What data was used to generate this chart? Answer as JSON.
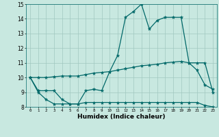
{
  "xlabel": "Humidex (Indice chaleur)",
  "x": [
    0,
    1,
    2,
    3,
    4,
    5,
    6,
    7,
    8,
    9,
    10,
    11,
    12,
    13,
    14,
    15,
    16,
    17,
    18,
    19,
    20,
    21,
    22,
    23
  ],
  "line1": [
    10.0,
    9.1,
    9.1,
    9.1,
    8.5,
    8.2,
    8.2,
    9.1,
    9.2,
    9.1,
    10.4,
    11.5,
    14.1,
    14.5,
    15.0,
    13.3,
    13.9,
    14.1,
    14.1,
    14.1,
    11.0,
    11.0,
    11.0,
    9.0
  ],
  "line2": [
    10.0,
    10.0,
    10.0,
    10.05,
    10.1,
    10.1,
    10.1,
    10.2,
    10.3,
    10.35,
    10.4,
    10.5,
    10.6,
    10.7,
    10.8,
    10.85,
    10.9,
    11.0,
    11.05,
    11.1,
    11.0,
    10.5,
    9.5,
    9.2
  ],
  "line3": [
    10.0,
    9.0,
    8.5,
    8.2,
    8.2,
    8.2,
    8.2,
    8.3,
    8.3,
    8.3,
    8.3,
    8.3,
    8.3,
    8.3,
    8.3,
    8.3,
    8.3,
    8.3,
    8.3,
    8.3,
    8.3,
    8.3,
    8.1,
    8.0
  ],
  "bg_color": "#c8e8e0",
  "grid_color": "#a0c8c0",
  "line_color": "#006868",
  "ylim": [
    8,
    15
  ],
  "xlim_min": -0.5,
  "xlim_max": 23.5
}
